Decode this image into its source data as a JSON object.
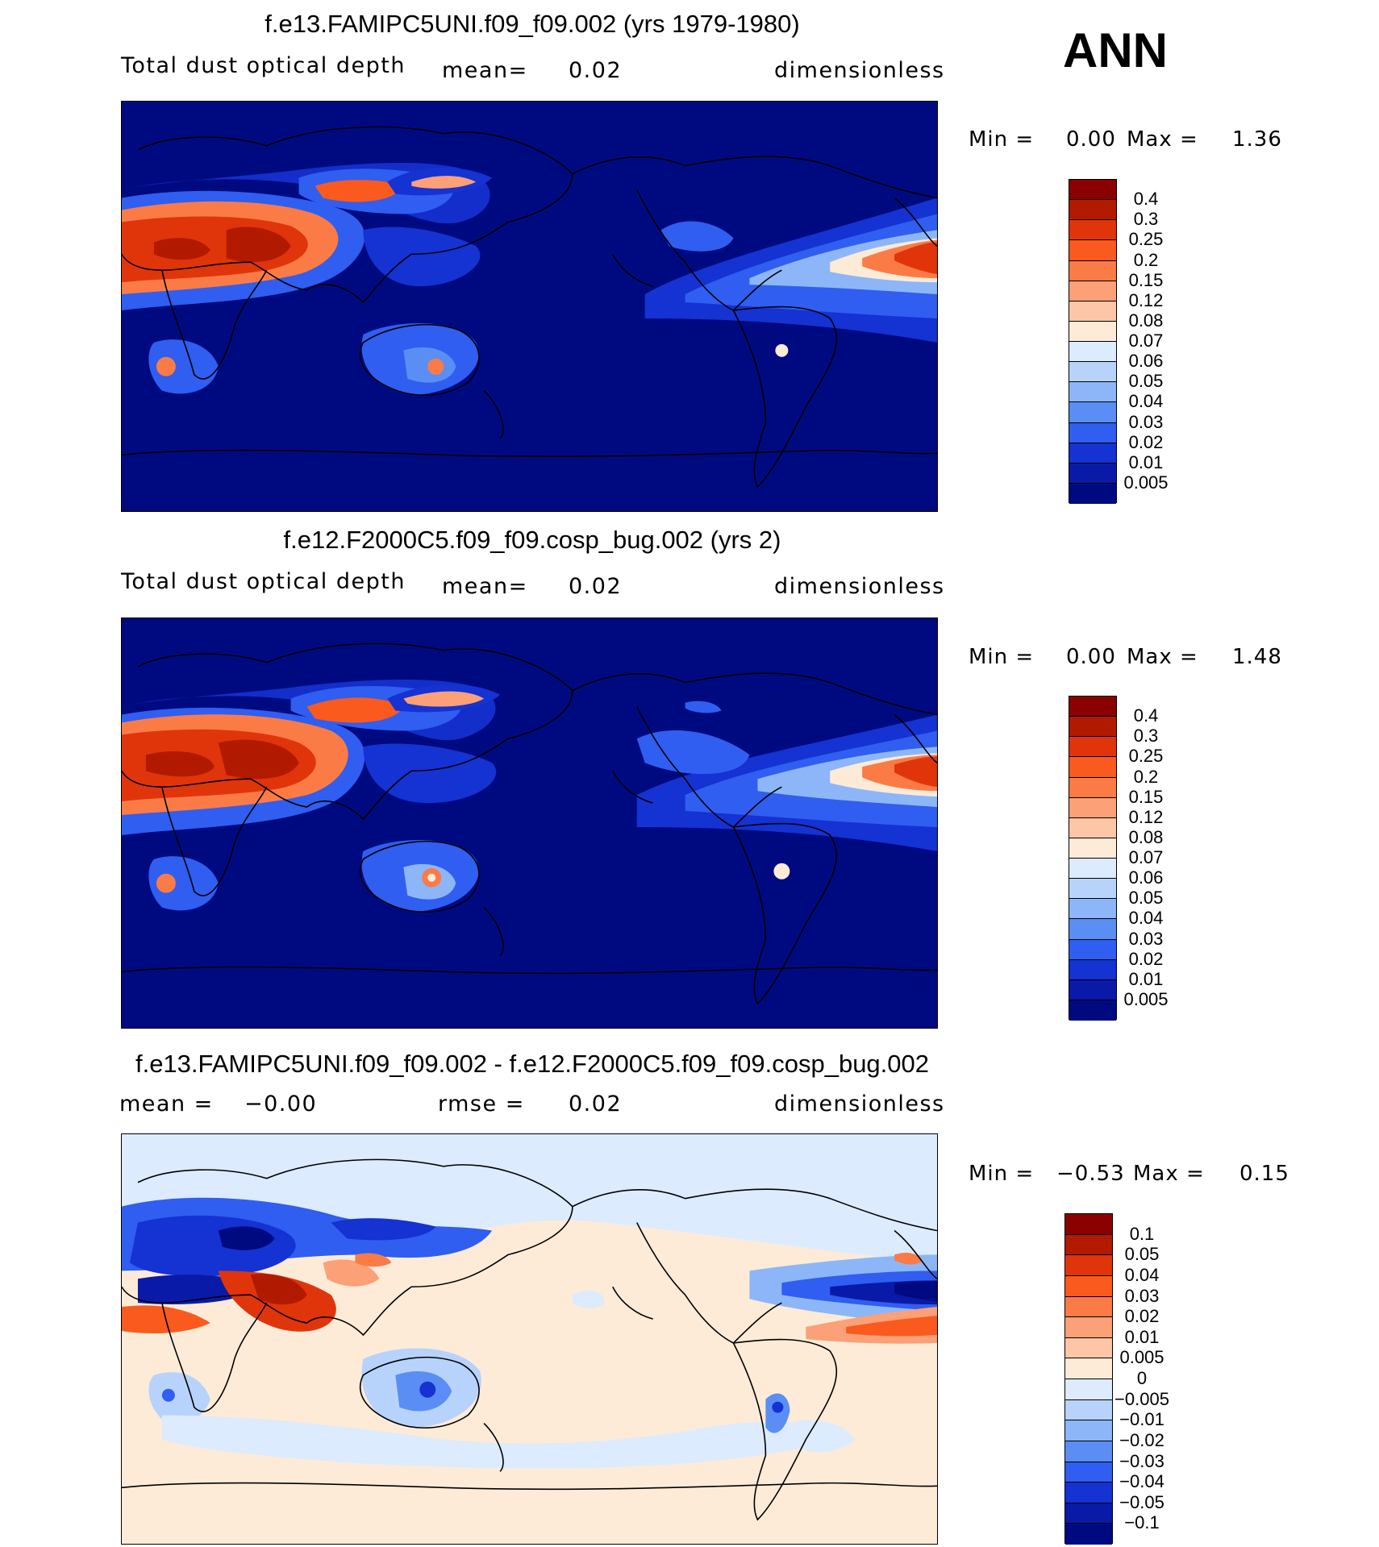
{
  "season": "ANN",
  "panels": [
    {
      "title": "f.e13.FAMIPC5UNI.f09_f09.002 (yrs 1979-1980)",
      "variable": "Total dust optical depth",
      "stat1": "mean=",
      "stat1_value": "0.02",
      "units": "dimensionless",
      "min_label": "Min =",
      "min_value": "0.00",
      "max_label": "Max =",
      "max_value": "1.36",
      "colorbar_labels": [
        "0.4",
        "0.3",
        "0.25",
        "0.2",
        "0.15",
        "0.12",
        "0.08",
        "0.07",
        "0.06",
        "0.05",
        "0.04",
        "0.03",
        "0.02",
        "0.01",
        "0.005"
      ],
      "colorbar_colors": [
        "#8b0000",
        "#b21a00",
        "#e0350a",
        "#fa5a1e",
        "#fb7b47",
        "#fca077",
        "#fdc6a6",
        "#fdebd8",
        "#dcebfd",
        "#b7d3fb",
        "#8cb6f8",
        "#5b8ef5",
        "#2f5ef0",
        "#1532d2",
        "#0a1aa8",
        "#000a80"
      ]
    },
    {
      "title": "f.e12.F2000C5.f09_f09.cosp_bug.002 (yrs 2)",
      "variable": "Total dust optical depth",
      "stat1": "mean=",
      "stat1_value": "0.02",
      "units": "dimensionless",
      "min_label": "Min =",
      "min_value": "0.00",
      "max_label": "Max =",
      "max_value": "1.48",
      "colorbar_labels": [
        "0.4",
        "0.3",
        "0.25",
        "0.2",
        "0.15",
        "0.12",
        "0.08",
        "0.07",
        "0.06",
        "0.05",
        "0.04",
        "0.03",
        "0.02",
        "0.01",
        "0.005"
      ],
      "colorbar_colors": [
        "#8b0000",
        "#b21a00",
        "#e0350a",
        "#fa5a1e",
        "#fb7b47",
        "#fca077",
        "#fdc6a6",
        "#fdebd8",
        "#dcebfd",
        "#b7d3fb",
        "#8cb6f8",
        "#5b8ef5",
        "#2f5ef0",
        "#1532d2",
        "#0a1aa8",
        "#000a80"
      ]
    },
    {
      "title": "f.e13.FAMIPC5UNI.f09_f09.002 - f.e12.F2000C5.f09_f09.cosp_bug.002",
      "stat1": "mean =",
      "stat1_value": "−0.00",
      "stat2": "rmse =",
      "stat2_value": "0.02",
      "units": "dimensionless",
      "min_label": "Min =",
      "min_value": "−0.53",
      "max_label": "Max =",
      "max_value": "0.15",
      "colorbar_labels": [
        "0.1",
        "0.05",
        "0.04",
        "0.03",
        "0.02",
        "0.01",
        "0.005",
        "0",
        "−0.005",
        "−0.01",
        "−0.02",
        "−0.03",
        "−0.04",
        "−0.05",
        "−0.1"
      ],
      "colorbar_colors": [
        "#8b0000",
        "#b21a00",
        "#e0350a",
        "#fa5a1e",
        "#fb7b47",
        "#fca077",
        "#fdc6a6",
        "#fdebd8",
        "#dcebfd",
        "#b7d3fb",
        "#8cb6f8",
        "#5b8ef5",
        "#2f5ef0",
        "#1532d2",
        "#0a1aa8",
        "#000a80"
      ]
    }
  ]
}
